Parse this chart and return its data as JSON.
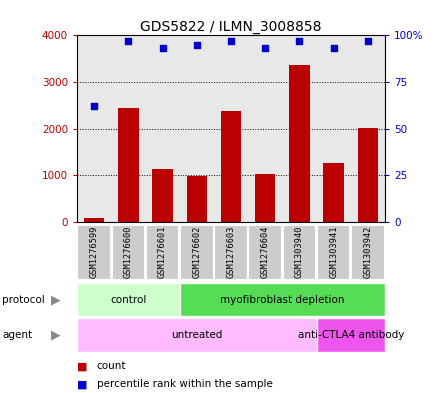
{
  "title": "GDS5822 / ILMN_3008858",
  "samples": [
    "GSM1276599",
    "GSM1276600",
    "GSM1276601",
    "GSM1276602",
    "GSM1276603",
    "GSM1276604",
    "GSM1303940",
    "GSM1303941",
    "GSM1303942"
  ],
  "bar_values": [
    80,
    2450,
    1130,
    990,
    2390,
    1020,
    3360,
    1270,
    2010
  ],
  "percentile_values": [
    62,
    97,
    93,
    95,
    97,
    93,
    97,
    93,
    97
  ],
  "bar_color": "#bb0000",
  "dot_color": "#0000cc",
  "ylim_left": [
    0,
    4000
  ],
  "ylim_right": [
    0,
    100
  ],
  "yticks_left": [
    0,
    1000,
    2000,
    3000,
    4000
  ],
  "ytick_labels_left": [
    "0",
    "1000",
    "2000",
    "3000",
    "4000"
  ],
  "ytick_labels_right": [
    "0",
    "25",
    "50",
    "75",
    "100%"
  ],
  "protocol_groups": [
    {
      "label": "control",
      "start": 0,
      "end": 3,
      "color": "#ccffcc"
    },
    {
      "label": "myofibroblast depletion",
      "start": 3,
      "end": 9,
      "color": "#55dd55"
    }
  ],
  "agent_groups": [
    {
      "label": "untreated",
      "start": 0,
      "end": 7,
      "color": "#ffbbff"
    },
    {
      "label": "anti-CTLA4 antibody",
      "start": 7,
      "end": 9,
      "color": "#ee55ee"
    }
  ],
  "legend_count_color": "#bb0000",
  "legend_dot_color": "#0000cc",
  "background_color": "#ffffff",
  "plot_bg_color": "#e8e8e8",
  "sample_box_color": "#cccccc",
  "sample_box_edge": "#ffffff"
}
